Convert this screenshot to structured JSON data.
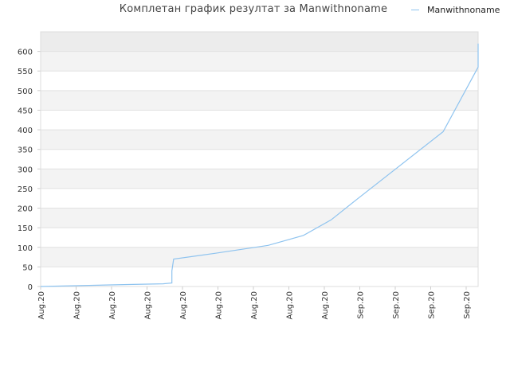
{
  "chart_data": {
    "type": "line",
    "title": "Комплетан график резултат за Manwithnoname",
    "legend": {
      "position": "top-right",
      "entries": [
        "Manwithnoname"
      ]
    },
    "grid": true,
    "ylim": [
      0,
      650
    ],
    "yticks": [
      0,
      50,
      100,
      150,
      200,
      250,
      300,
      350,
      400,
      450,
      500,
      550,
      600
    ],
    "xticks": [
      "Aug.20",
      "Aug.20",
      "Aug.20",
      "Aug.20",
      "Aug.20",
      "Aug.20",
      "Aug.20",
      "Aug.20",
      "Aug.20",
      "Sep.20",
      "Sep.20",
      "Sep.20",
      "Sep.20"
    ],
    "xlim": [
      0,
      12.5
    ],
    "series": [
      {
        "name": "Manwithnoname",
        "color": "#8ec3ef",
        "points": [
          [
            0,
            0
          ],
          [
            0.5,
            1
          ],
          [
            1.5,
            3
          ],
          [
            2.5,
            5
          ],
          [
            3.5,
            7
          ],
          [
            3.75,
            9
          ],
          [
            3.75,
            40
          ],
          [
            3.8,
            70
          ],
          [
            5,
            85
          ],
          [
            6.5,
            105
          ],
          [
            7.5,
            130
          ],
          [
            8.3,
            170
          ],
          [
            9.0,
            220
          ],
          [
            11.5,
            395
          ],
          [
            12.5,
            560
          ],
          [
            12.5,
            620
          ]
        ]
      }
    ]
  }
}
